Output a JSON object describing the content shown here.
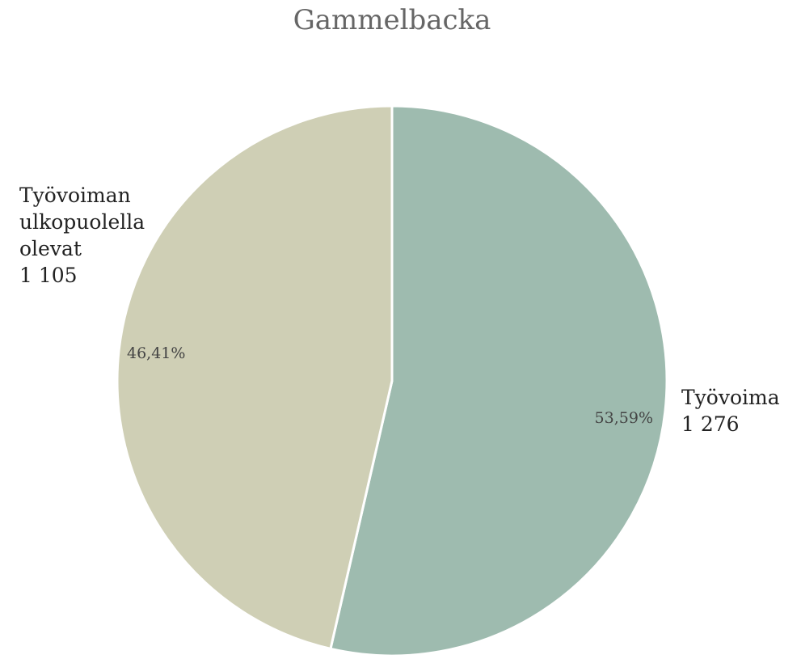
{
  "chart_data": {
    "type": "pie",
    "title": "Gammelbacka",
    "slices": [
      {
        "name": "Työvoima",
        "value": 1276,
        "value_label": "1 276",
        "percent": 53.59,
        "percent_label": "53,59%",
        "color": "#9ebbaf"
      },
      {
        "name": "Työvoiman ulkopuolella olevat",
        "name_lines": [
          "Työvoiman",
          "ulkopuolella",
          "olevat"
        ],
        "value": 1105,
        "value_label": "1 105",
        "percent": 46.41,
        "percent_label": "46,41%",
        "color": "#cfcfb5"
      }
    ],
    "start_angle": "12 o'clock",
    "direction": "clockwise",
    "separator_color": "#ffffff",
    "legend": "none"
  }
}
